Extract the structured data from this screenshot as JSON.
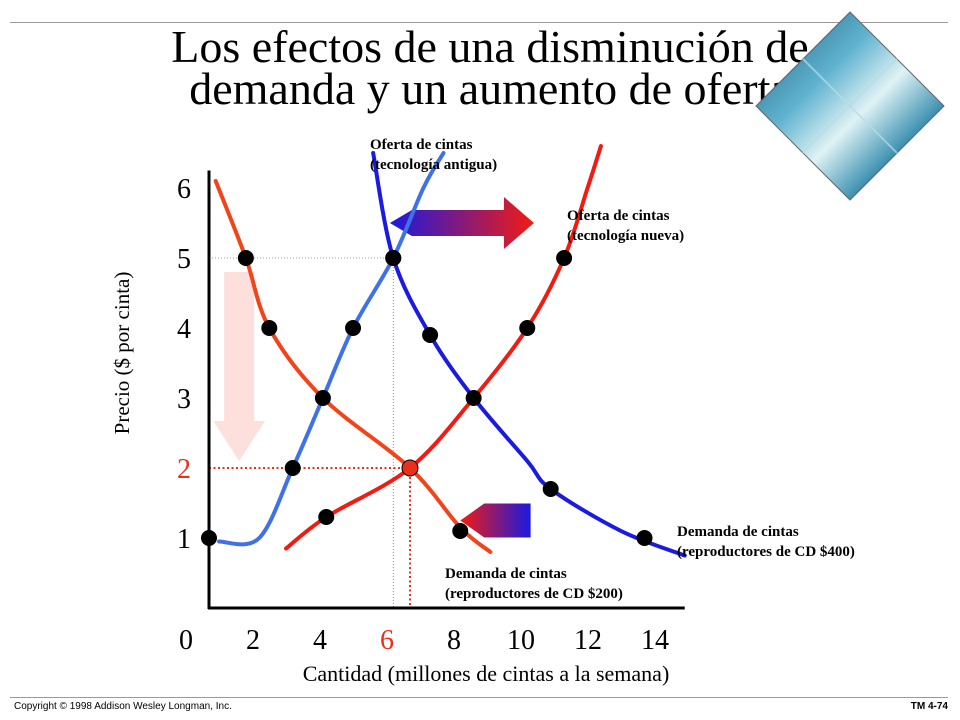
{
  "title_line1": "Los efectos de una disminución de",
  "title_line2": "demanda y un aumento de oferta",
  "footer": {
    "copyright": "Copyright © 1998 Addison Wesley Longman, Inc.",
    "slide_id": "TM 4-74"
  },
  "colors": {
    "old_supply": "#3f72e6",
    "new_supply": "#f21b12",
    "demand_400": "#1a1ae0",
    "demand_200": "#f2441a",
    "highlight": "#e8301c",
    "down_arrow": "#fde0dc"
  },
  "chart_data": {
    "type": "line",
    "xlabel": "Cantidad (millones de cintas a la semana)",
    "ylabel": "Precio ($ por cinta)",
    "xlim": [
      0,
      14
    ],
    "ylim": [
      0,
      6.5
    ],
    "x_ticks": [
      "0",
      "2",
      "4",
      "6",
      "8",
      "10",
      "12",
      "14"
    ],
    "y_ticks": [
      "1",
      "2",
      "3",
      "4",
      "5",
      "6"
    ],
    "highlight": {
      "x_label": "6",
      "y_label": "2",
      "x": 6,
      "y": 2
    },
    "series": [
      {
        "name": "Oferta de cintas (tecnología antigua)",
        "label_lines": [
          "Oferta de cintas",
          "(tecnología antigua)"
        ],
        "color_key": "old_supply",
        "curve": [
          [
            0.3,
            0.95
          ],
          [
            1.5,
            1.0
          ],
          [
            2.5,
            2.0
          ],
          [
            3.4,
            3.0
          ],
          [
            4.3,
            4.0
          ],
          [
            5.5,
            5.0
          ],
          [
            6.4,
            6.0
          ],
          [
            7.0,
            6.5
          ]
        ],
        "points": [
          [
            0,
            1
          ],
          [
            2.5,
            2
          ],
          [
            3.4,
            3
          ],
          [
            4.3,
            4
          ],
          [
            5.5,
            5
          ]
        ]
      },
      {
        "name": "Oferta de cintas (tecnología nueva)",
        "label_lines": [
          "Oferta de cintas",
          "(tecnología nueva)"
        ],
        "color_key": "new_supply",
        "curve": [
          [
            2.3,
            0.85
          ],
          [
            3.5,
            1.3
          ],
          [
            6,
            2
          ],
          [
            7.9,
            3
          ],
          [
            9.5,
            4
          ],
          [
            10.6,
            5
          ],
          [
            11.3,
            6
          ],
          [
            11.7,
            6.6
          ]
        ],
        "points": [
          [
            3.5,
            1.3
          ],
          [
            6,
            2
          ],
          [
            7.9,
            3
          ],
          [
            9.5,
            4
          ],
          [
            10.6,
            5
          ]
        ]
      },
      {
        "name": "Demanda de cintas (reproductores de CD $400)",
        "label_lines": [
          "Demanda de cintas",
          "(reproductores de CD $400)"
        ],
        "color_key": "demand_400",
        "curve": [
          [
            4.9,
            6.5
          ],
          [
            5.5,
            5.0
          ],
          [
            6.6,
            3.9
          ],
          [
            7.9,
            3.0
          ],
          [
            9.5,
            2.1
          ],
          [
            10.2,
            1.7
          ],
          [
            12.3,
            1.1
          ],
          [
            14.2,
            0.75
          ]
        ],
        "points": [
          [
            5.5,
            5.0
          ],
          [
            6.6,
            3.9
          ],
          [
            10.2,
            1.7
          ],
          [
            13,
            1.0
          ]
        ]
      },
      {
        "name": "Demanda de cintas (reproductores de CD $200)",
        "label_lines": [
          "Demanda de cintas",
          "(reproductores de CD $200)"
        ],
        "color_key": "demand_200",
        "curve": [
          [
            0.2,
            6.1
          ],
          [
            1.1,
            5.0
          ],
          [
            1.8,
            4.0
          ],
          [
            3.4,
            3.0
          ],
          [
            6.0,
            2.0
          ],
          [
            7.5,
            1.15
          ],
          [
            8.4,
            0.8
          ]
        ],
        "points": [
          [
            1.1,
            5.0
          ],
          [
            1.8,
            4.0
          ],
          [
            6.0,
            2.0
          ],
          [
            7.5,
            1.1
          ]
        ]
      }
    ],
    "annotations": [
      {
        "name": "supply-shift-arrow",
        "from": [
          5.4,
          5.5
        ],
        "to": [
          9.7,
          5.5
        ]
      },
      {
        "name": "demand-shift-arrow",
        "from": [
          9.6,
          1.25
        ],
        "to": [
          7.5,
          1.25
        ]
      },
      {
        "name": "price-drop-arrow",
        "from": [
          0.9,
          4.8
        ],
        "to": [
          0.9,
          2.1
        ]
      }
    ]
  }
}
